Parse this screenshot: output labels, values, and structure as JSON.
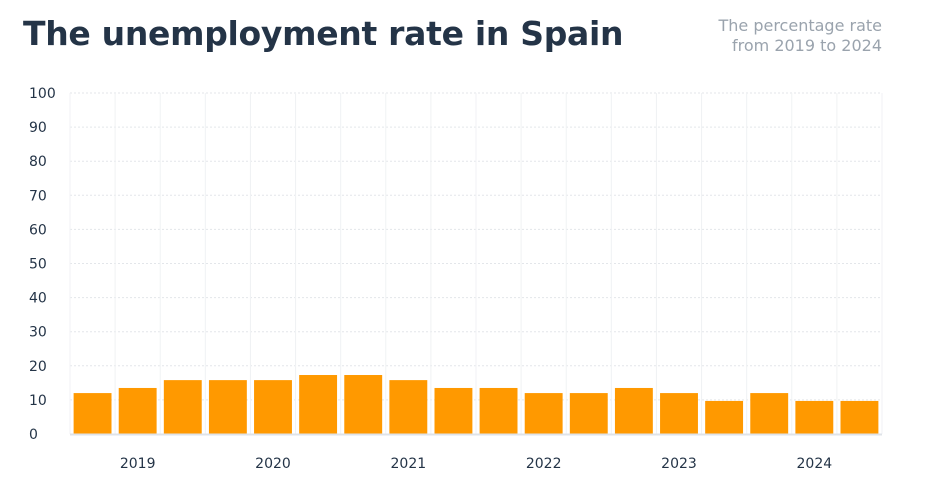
{
  "chart_data": {
    "type": "bar",
    "title": "The unemployment rate in Spain",
    "subtitle_lines": [
      "The percentage rate",
      "from 2019 to 2024"
    ],
    "ylim": [
      0,
      100
    ],
    "y_ticks": [
      0,
      10,
      20,
      30,
      40,
      50,
      60,
      70,
      80,
      90,
      100
    ],
    "x_tick_labels": [
      "2019",
      "2020",
      "2021",
      "2022",
      "2023",
      "2024"
    ],
    "values": [
      12,
      13.5,
      15.8,
      15.8,
      15.8,
      17.3,
      17.3,
      15.8,
      13.5,
      13.5,
      12,
      12,
      13.5,
      12,
      9.7,
      12,
      9.7,
      9.7
    ],
    "bar_color": "#ff9900",
    "grid": true
  }
}
